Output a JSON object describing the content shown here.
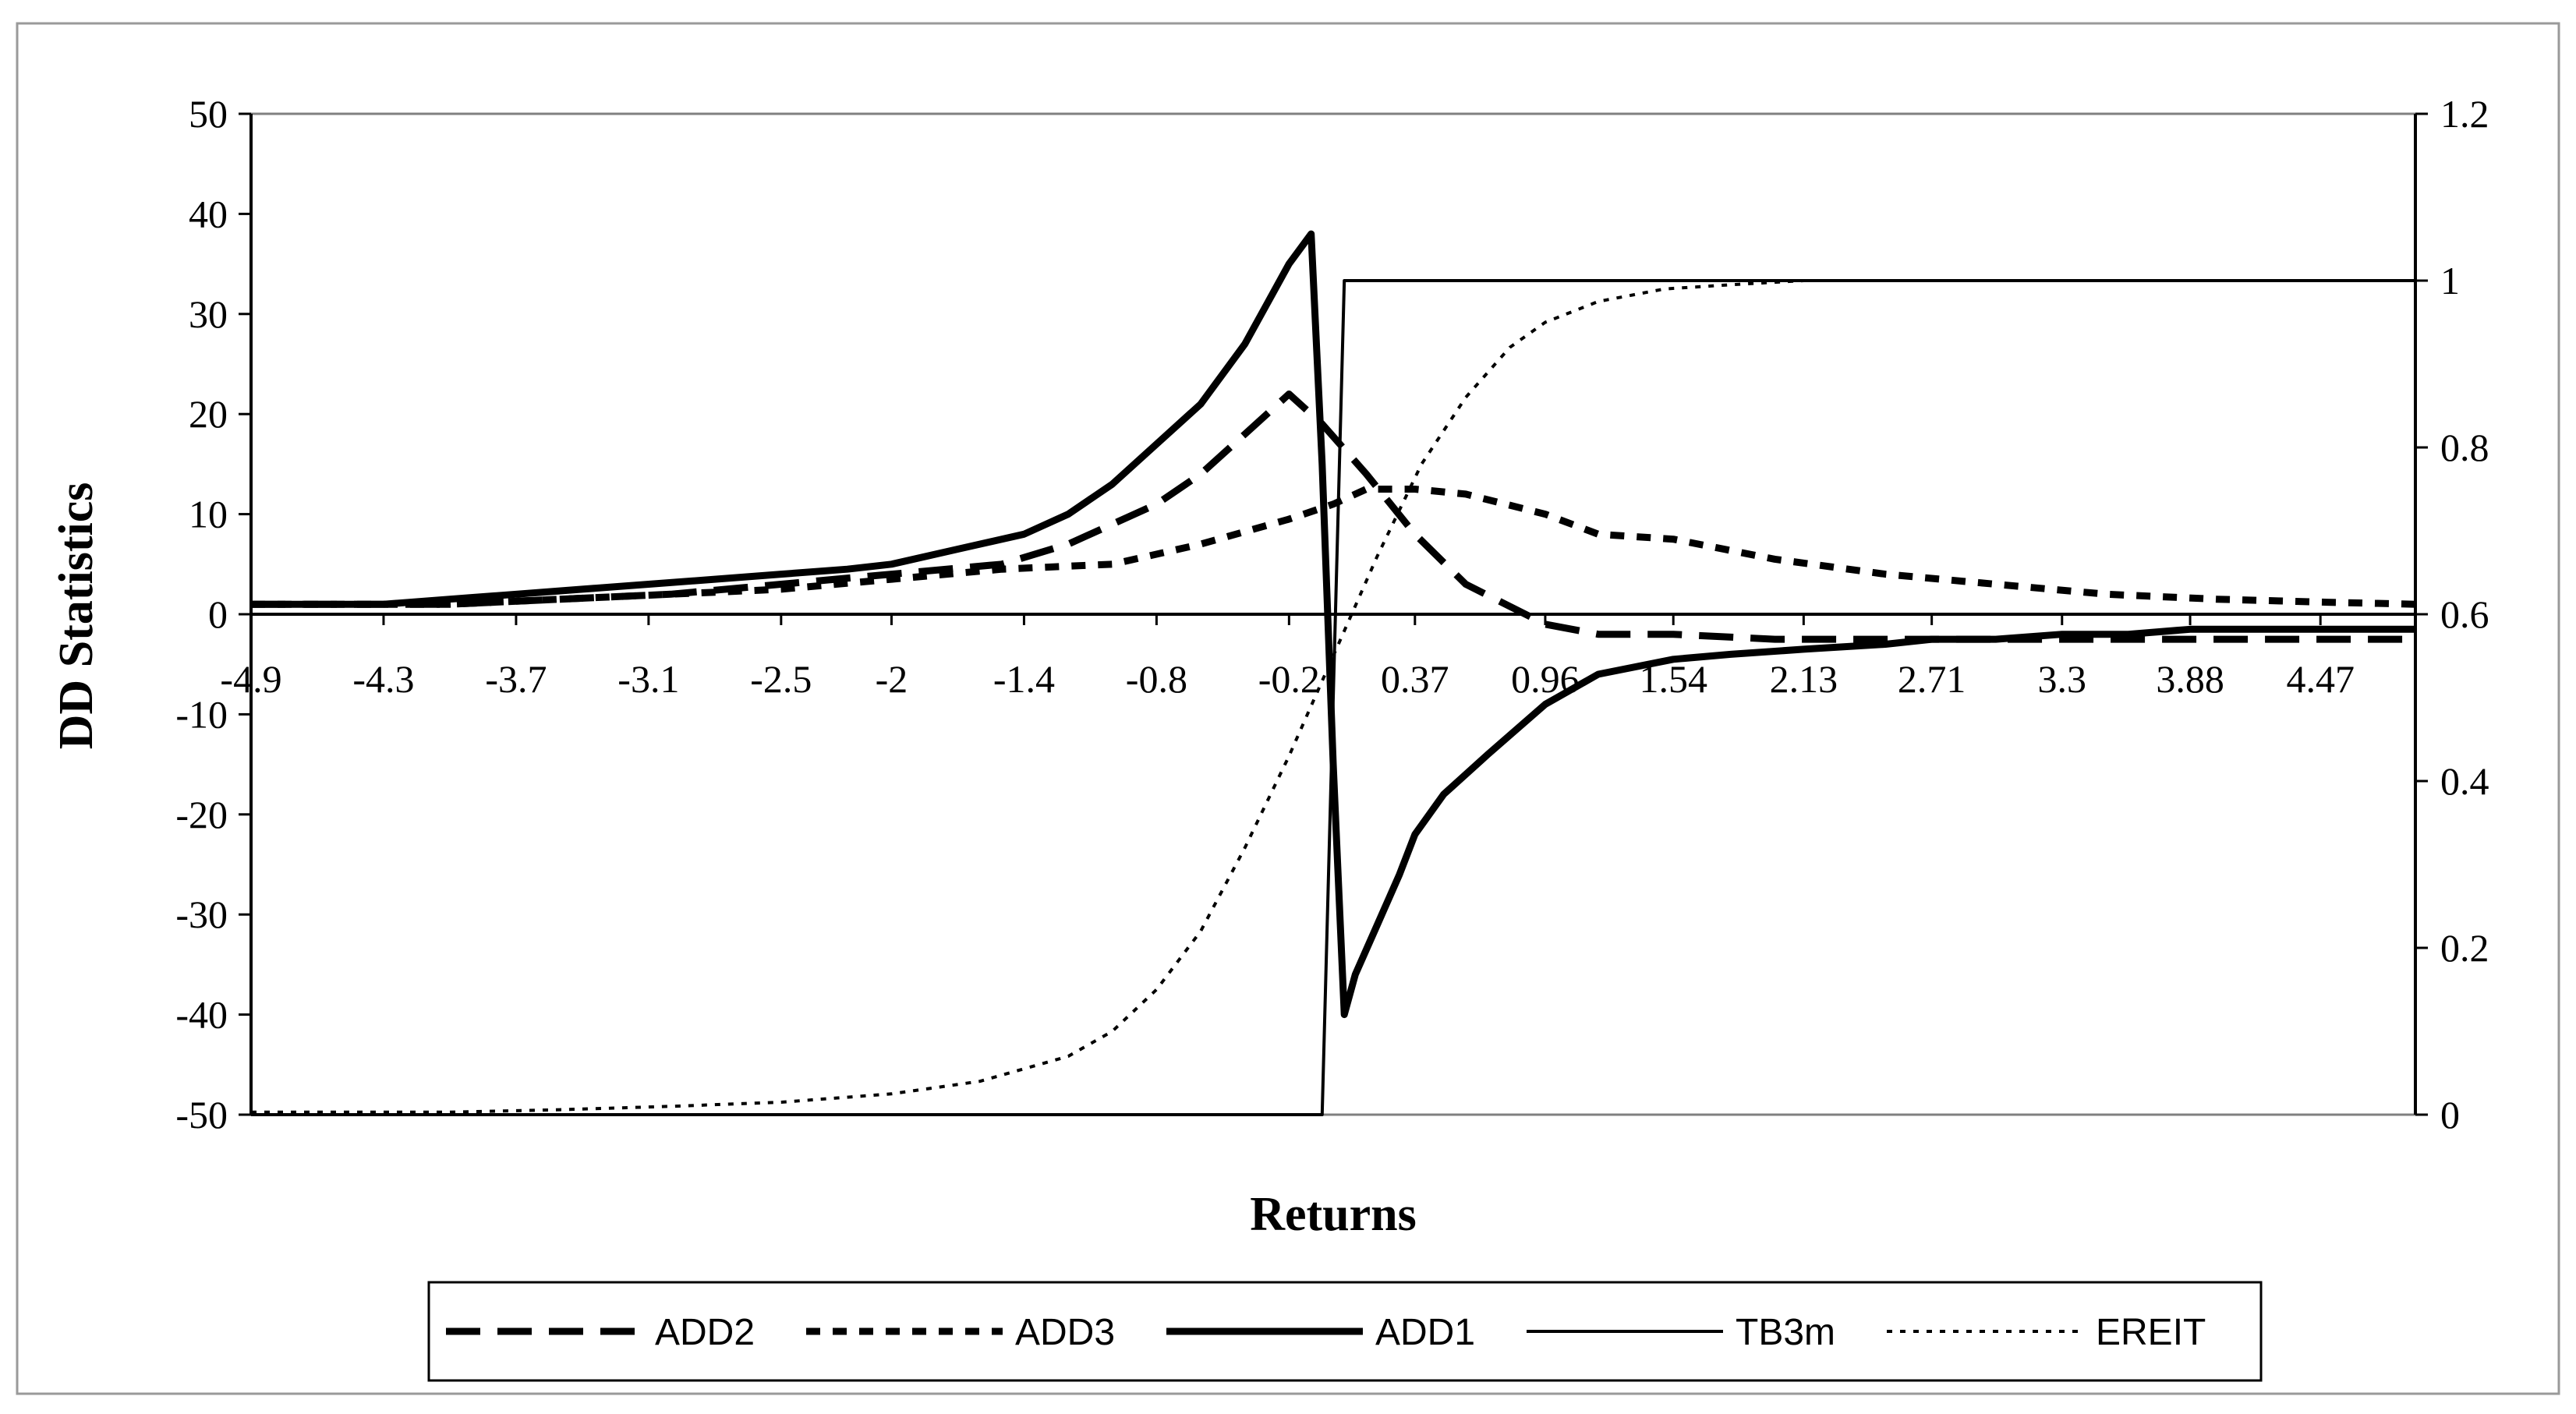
{
  "chart_data": {
    "type": "line",
    "title": "",
    "xlabel": "Returns",
    "ylabel": "DD Statistics",
    "y2label": "",
    "ylim": [
      -50,
      50
    ],
    "y2lim": [
      0,
      1.2
    ],
    "xlim": [
      -4.9,
      4.9
    ],
    "x_tick_labels": [
      "-4.9",
      "-4.3",
      "-3.7",
      "-3.1",
      "-2.5",
      "-2",
      "-1.4",
      "-0.8",
      "-0.2",
      "0.37",
      "0.96",
      "1.54",
      "2.13",
      "2.71",
      "3.3",
      "3.88",
      "4.47"
    ],
    "x_tick_values": [
      -4.9,
      -4.3,
      -3.7,
      -3.1,
      -2.5,
      -2.0,
      -1.4,
      -0.8,
      -0.2,
      0.37,
      0.96,
      1.54,
      2.13,
      2.71,
      3.3,
      3.88,
      4.47
    ],
    "y_ticks": [
      "50",
      "40",
      "30",
      "20",
      "10",
      "0",
      "-10",
      "-20",
      "-30",
      "-40",
      "-50"
    ],
    "y2_ticks": [
      "1.2",
      "1",
      "0.8",
      "0.6",
      "0.4",
      "0.2",
      "0"
    ],
    "grid": false,
    "legend_position": "bottom",
    "series": [
      {
        "name": "ADD2",
        "axis": "left",
        "style": "long-dash-thick",
        "color": "#000000",
        "x": [
          -4.9,
          -4.0,
          -3.5,
          -3.0,
          -2.5,
          -2.0,
          -1.5,
          -1.2,
          -0.8,
          -0.6,
          -0.4,
          -0.2,
          -0.05,
          0.15,
          0.37,
          0.6,
          0.96,
          1.2,
          1.54,
          2.0,
          2.5,
          3.0,
          3.5,
          4.0,
          4.5,
          4.9
        ],
        "y": [
          1,
          1,
          1.5,
          2,
          3,
          4,
          5,
          7,
          11,
          14,
          18,
          22,
          19,
          14,
          8,
          3,
          -1,
          -2,
          -2,
          -2.5,
          -2.5,
          -2.5,
          -2.5,
          -2.5,
          -2.5,
          -2.5
        ]
      },
      {
        "name": "ADD3",
        "axis": "left",
        "style": "short-dash-thick",
        "color": "#000000",
        "x": [
          -4.9,
          -4.0,
          -3.5,
          -3.0,
          -2.5,
          -2.0,
          -1.5,
          -1.0,
          -0.6,
          -0.2,
          0.0,
          0.15,
          0.37,
          0.6,
          0.96,
          1.2,
          1.54,
          2.0,
          2.5,
          3.0,
          3.5,
          4.0,
          4.5,
          4.9
        ],
        "y": [
          1,
          1,
          1.5,
          2,
          2.5,
          3.5,
          4.5,
          5,
          7,
          9.5,
          11,
          12.5,
          12.5,
          12,
          10,
          8,
          7.5,
          5.5,
          4,
          3,
          2,
          1.5,
          1.2,
          1
        ]
      },
      {
        "name": "ADD1",
        "axis": "left",
        "style": "solid-thick",
        "color": "#000000",
        "x": [
          -4.9,
          -4.3,
          -4.0,
          -3.7,
          -3.4,
          -3.1,
          -2.8,
          -2.5,
          -2.2,
          -2.0,
          -1.7,
          -1.4,
          -1.2,
          -1.0,
          -0.8,
          -0.6,
          -0.5,
          -0.4,
          -0.3,
          -0.2,
          -0.1,
          -0.05,
          0.0,
          0.05,
          0.1,
          0.2,
          0.3,
          0.37,
          0.5,
          0.7,
          0.96,
          1.2,
          1.54,
          1.8,
          2.13,
          2.5,
          2.71,
          3.0,
          3.3,
          3.6,
          3.88,
          4.2,
          4.47,
          4.9
        ],
        "y": [
          1,
          1,
          1.5,
          2,
          2.5,
          3,
          3.5,
          4,
          4.5,
          5,
          6.5,
          8,
          10,
          13,
          17,
          21,
          24,
          27,
          31,
          35,
          38,
          15,
          -15,
          -40,
          -36,
          -31,
          -26,
          -22,
          -18,
          -14,
          -9,
          -6,
          -4.5,
          -4,
          -3.5,
          -3,
          -2.5,
          -2.5,
          -2,
          -2,
          -1.5,
          -1.5,
          -1.5,
          -1.5
        ]
      },
      {
        "name": "TB3m",
        "axis": "right",
        "style": "solid-thin",
        "color": "#000000",
        "x": [
          -4.9,
          -0.05,
          0.0,
          0.05,
          4.9
        ],
        "y": [
          0,
          0,
          0.5,
          1,
          1
        ]
      },
      {
        "name": "EREIT",
        "axis": "right",
        "style": "dotted-thin",
        "color": "#000000",
        "x": [
          -4.9,
          -4.0,
          -3.5,
          -3.0,
          -2.5,
          -2.0,
          -1.6,
          -1.2,
          -1.0,
          -0.8,
          -0.6,
          -0.4,
          -0.2,
          0.0,
          0.2,
          0.4,
          0.6,
          0.8,
          0.96,
          1.2,
          1.5,
          1.8,
          2.13,
          2.5,
          3.0,
          3.5,
          4.0,
          4.5,
          4.9
        ],
        "y": [
          0.003,
          0.003,
          0.006,
          0.01,
          0.015,
          0.025,
          0.04,
          0.07,
          0.1,
          0.15,
          0.22,
          0.32,
          0.43,
          0.55,
          0.67,
          0.78,
          0.86,
          0.92,
          0.95,
          0.975,
          0.99,
          0.995,
          1.0,
          1.0,
          1.0,
          1.0,
          1.0,
          1.0,
          1.0
        ]
      }
    ]
  }
}
